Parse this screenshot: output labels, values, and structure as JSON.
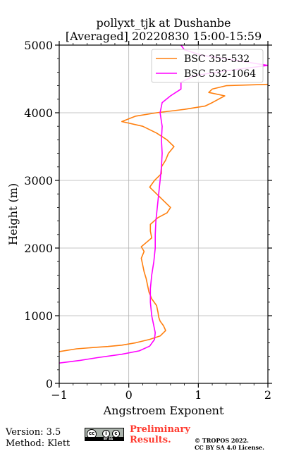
{
  "chart_data": {
    "type": "line",
    "title": "pollyxt_tjk at Dushanbe",
    "subtitle": "[Averaged] 20220830 15:00-15:59",
    "xlabel": "Angstroem Exponent",
    "ylabel": "Height (m)",
    "xlim": [
      -1,
      2
    ],
    "ylim": [
      0,
      5000
    ],
    "xticks": [
      "−1",
      "0",
      "1",
      "2"
    ],
    "yticks": [
      "0",
      "1000",
      "2000",
      "3000",
      "4000",
      "5000"
    ],
    "grid": true,
    "legend_position": "top-right",
    "series": [
      {
        "name": "BSC 355-532",
        "color": "#ff7f0e",
        "points": [
          [
            -1.0,
            470
          ],
          [
            -0.75,
            510
          ],
          [
            -0.5,
            530
          ],
          [
            -0.3,
            545
          ],
          [
            -0.1,
            565
          ],
          [
            0.1,
            600
          ],
          [
            0.3,
            650
          ],
          [
            0.45,
            700
          ],
          [
            0.53,
            780
          ],
          [
            0.5,
            850
          ],
          [
            0.45,
            920
          ],
          [
            0.43,
            980
          ],
          [
            0.42,
            1050
          ],
          [
            0.4,
            1150
          ],
          [
            0.33,
            1250
          ],
          [
            0.29,
            1350
          ],
          [
            0.27,
            1450
          ],
          [
            0.25,
            1550
          ],
          [
            0.22,
            1650
          ],
          [
            0.2,
            1750
          ],
          [
            0.18,
            1850
          ],
          [
            0.22,
            1950
          ],
          [
            0.18,
            2020
          ],
          [
            0.25,
            2080
          ],
          [
            0.33,
            2150
          ],
          [
            0.31,
            2250
          ],
          [
            0.31,
            2350
          ],
          [
            0.42,
            2450
          ],
          [
            0.55,
            2520
          ],
          [
            0.6,
            2600
          ],
          [
            0.5,
            2700
          ],
          [
            0.42,
            2780
          ],
          [
            0.3,
            2900
          ],
          [
            0.37,
            3000
          ],
          [
            0.47,
            3100
          ],
          [
            0.47,
            3200
          ],
          [
            0.53,
            3300
          ],
          [
            0.57,
            3400
          ],
          [
            0.65,
            3500
          ],
          [
            0.55,
            3600
          ],
          [
            0.4,
            3700
          ],
          [
            0.2,
            3800
          ],
          [
            -0.1,
            3870
          ],
          [
            0.1,
            3950
          ],
          [
            0.4,
            4000
          ],
          [
            0.8,
            4050
          ],
          [
            1.1,
            4100
          ],
          [
            1.2,
            4150
          ],
          [
            1.38,
            4250
          ],
          [
            1.15,
            4300
          ],
          [
            1.2,
            4350
          ],
          [
            1.4,
            4400
          ],
          [
            2.0,
            4420
          ]
        ]
      },
      {
        "name": "BSC 532-1064",
        "color": "#ff00ff",
        "points": [
          [
            -1.0,
            300
          ],
          [
            -0.7,
            340
          ],
          [
            -0.45,
            380
          ],
          [
            -0.1,
            430
          ],
          [
            0.15,
            480
          ],
          [
            0.3,
            550
          ],
          [
            0.37,
            650
          ],
          [
            0.38,
            750
          ],
          [
            0.36,
            850
          ],
          [
            0.33,
            1000
          ],
          [
            0.31,
            1200
          ],
          [
            0.31,
            1400
          ],
          [
            0.33,
            1600
          ],
          [
            0.36,
            1800
          ],
          [
            0.38,
            2000
          ],
          [
            0.38,
            2200
          ],
          [
            0.39,
            2400
          ],
          [
            0.41,
            2600
          ],
          [
            0.43,
            2800
          ],
          [
            0.45,
            3000
          ],
          [
            0.47,
            3200
          ],
          [
            0.48,
            3400
          ],
          [
            0.47,
            3600
          ],
          [
            0.48,
            3800
          ],
          [
            0.45,
            4000
          ],
          [
            0.48,
            4150
          ],
          [
            0.6,
            4250
          ],
          [
            0.75,
            4350
          ],
          [
            0.75,
            4450
          ],
          [
            0.95,
            4550
          ],
          [
            1.4,
            4620
          ],
          [
            2.0,
            4700
          ],
          [
            1.5,
            4780
          ],
          [
            1.05,
            4850
          ],
          [
            0.8,
            4930
          ],
          [
            0.75,
            5000
          ]
        ]
      }
    ]
  },
  "footer": {
    "version": "Version: 3.5",
    "method": "Method: Klett",
    "preliminary_line1": "Preliminary",
    "preliminary_line2": "Results.",
    "copyright": "© TROPOS 2022.",
    "license": "CC BY SA 4.0 License.",
    "badge_label": "cc",
    "badge_by": "i",
    "badge_sa": "c",
    "badge_strip": "BY SA"
  }
}
